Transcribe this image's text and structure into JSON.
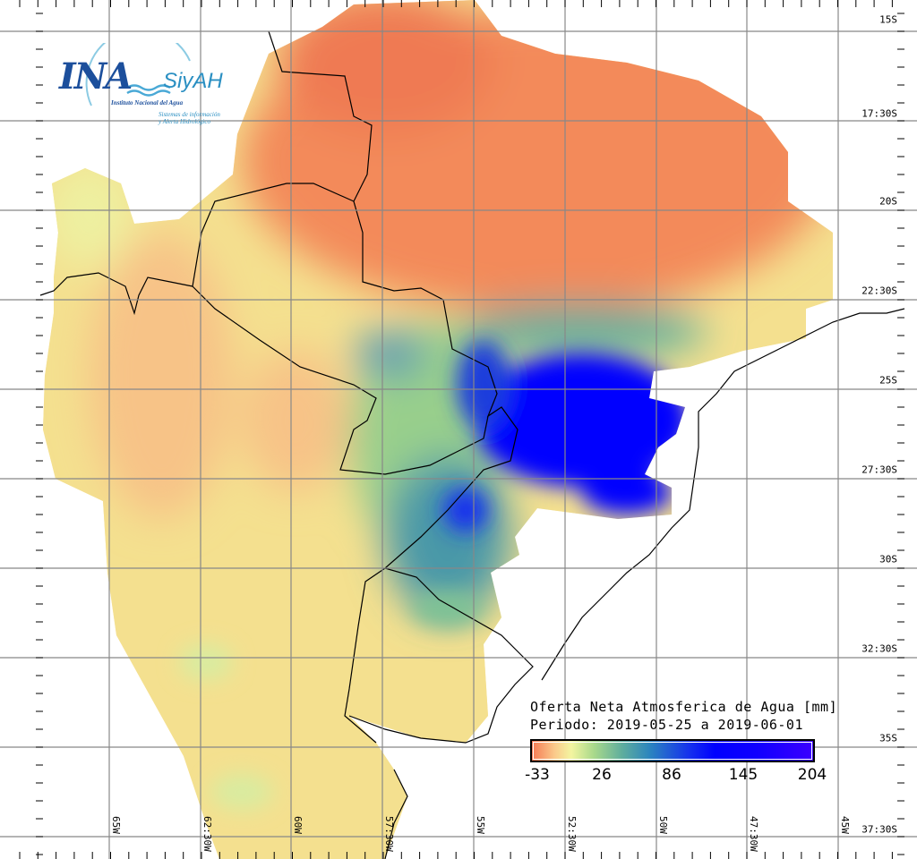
{
  "logo": {
    "name": "INA",
    "product": "SiyAH",
    "institution": "Instituto Nacional del Agua",
    "system_line1": "Sistemas de información",
    "system_line2": "y Alerta Hidrológico"
  },
  "legend": {
    "title": "Oferta Neta Atmosferica de Agua [mm]",
    "period": "Periodo: 2019-05-25 a 2019-06-01",
    "ticks": [
      "-33",
      "26",
      "86",
      "145",
      "204"
    ],
    "colors": [
      "#f47a55",
      "#f3f5a0",
      "#5fae9d",
      "#0000ff",
      "#3c00ff"
    ]
  },
  "lat_labels": [
    "15S",
    "17:30S",
    "20S",
    "22:30S",
    "25S",
    "27:30S",
    "30S",
    "32:30S",
    "35S",
    "37:30S"
  ],
  "lon_labels": [
    "65W",
    "62:30W",
    "60W",
    "57:30W",
    "55W",
    "52:30W",
    "50W",
    "47:30W",
    "45W"
  ]
}
